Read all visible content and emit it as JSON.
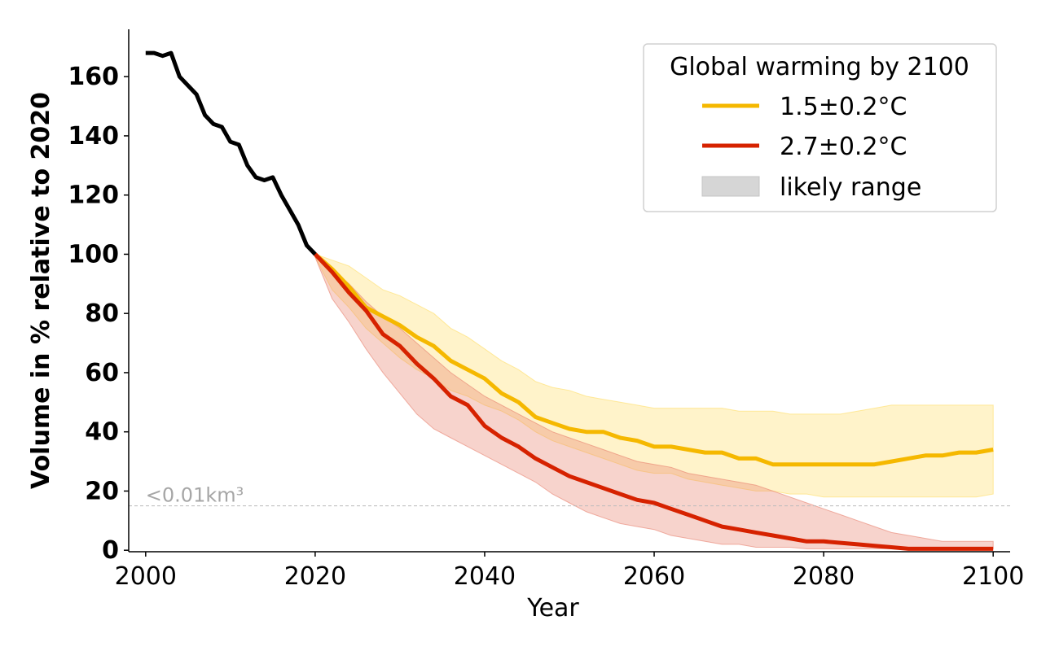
{
  "chart_data": {
    "type": "line",
    "title": "",
    "xlabel": "Year",
    "ylabel": "Volume in % relative to 2020",
    "xlim": [
      1998,
      2102
    ],
    "ylim": [
      -0.5,
      176
    ],
    "xticks": [
      2000,
      2020,
      2040,
      2060,
      2080,
      2100
    ],
    "yticks": [
      0,
      20,
      40,
      60,
      80,
      100,
      120,
      140,
      160
    ],
    "legend_position": "top-right",
    "legend": {
      "title": "Global warming by 2100",
      "entries": [
        "1.5±0.2°C",
        "2.7±0.2°C",
        "likely range"
      ]
    },
    "threshold": {
      "y": 15,
      "label": "<0.01km³"
    },
    "colors": {
      "historical": "#000000",
      "s15": "#f5b800",
      "s27": "#d62200",
      "s15_band": "#ffdd66",
      "s27_band": "#e8806e",
      "range_swatch": "#d6d6d6",
      "threshold": "#bbbbbb",
      "threshold_text": "#a6a6a6"
    },
    "historical": {
      "name": "observed",
      "x": [
        2000,
        2001,
        2002,
        2003,
        2004,
        2005,
        2006,
        2007,
        2008,
        2009,
        2010,
        2011,
        2012,
        2013,
        2014,
        2015,
        2016,
        2017,
        2018,
        2019,
        2020
      ],
      "y": [
        168,
        168,
        167,
        168,
        160,
        157,
        154,
        147,
        144,
        143,
        138,
        137,
        130,
        126,
        125,
        126,
        120,
        115,
        110,
        103,
        100
      ]
    },
    "series": [
      {
        "name": "1.5±0.2°C",
        "x": [
          2020,
          2022,
          2024,
          2026,
          2028,
          2030,
          2032,
          2034,
          2036,
          2038,
          2040,
          2042,
          2044,
          2046,
          2048,
          2050,
          2052,
          2054,
          2056,
          2058,
          2060,
          2062,
          2064,
          2066,
          2068,
          2070,
          2072,
          2074,
          2076,
          2078,
          2080,
          2082,
          2084,
          2086,
          2088,
          2090,
          2092,
          2094,
          2096,
          2098,
          2100
        ],
        "y": [
          100,
          95,
          89,
          82,
          79,
          76,
          72,
          69,
          64,
          61,
          58,
          53,
          50,
          45,
          43,
          41,
          40,
          40,
          38,
          37,
          35,
          35,
          34,
          33,
          33,
          31,
          31,
          29,
          29,
          29,
          29,
          29,
          29,
          29,
          30,
          31,
          32,
          32,
          33,
          33,
          34
        ],
        "low": [
          99,
          88,
          82,
          75,
          70,
          65,
          61,
          58,
          54,
          52,
          49,
          47,
          44,
          40,
          37,
          35,
          33,
          31,
          29,
          27,
          26,
          26,
          24,
          23,
          22,
          21,
          20,
          20,
          19,
          19,
          18,
          18,
          18,
          18,
          18,
          18,
          18,
          18,
          18,
          18,
          19
        ],
        "high": [
          100,
          98,
          96,
          92,
          88,
          86,
          83,
          80,
          75,
          72,
          68,
          64,
          61,
          57,
          55,
          54,
          52,
          51,
          50,
          49,
          48,
          48,
          48,
          48,
          48,
          47,
          47,
          47,
          46,
          46,
          46,
          46,
          47,
          48,
          49,
          49,
          49,
          49,
          49,
          49,
          49
        ]
      },
      {
        "name": "2.7±0.2°C",
        "x": [
          2020,
          2022,
          2024,
          2026,
          2028,
          2030,
          2032,
          2034,
          2036,
          2038,
          2040,
          2042,
          2044,
          2046,
          2048,
          2050,
          2052,
          2054,
          2056,
          2058,
          2060,
          2062,
          2064,
          2066,
          2068,
          2070,
          2072,
          2074,
          2076,
          2078,
          2080,
          2082,
          2084,
          2086,
          2088,
          2090,
          2092,
          2094,
          2096,
          2098,
          2100
        ],
        "y": [
          100,
          94,
          87,
          81,
          73,
          69,
          63,
          58,
          52,
          49,
          42,
          38,
          35,
          31,
          28,
          25,
          23,
          21,
          19,
          17,
          16,
          14,
          12,
          10,
          8,
          7,
          6,
          5,
          4,
          3,
          3,
          2.5,
          2,
          1.5,
          1,
          0.5,
          0.5,
          0.5,
          0.5,
          0.5,
          0.5
        ],
        "low": [
          99,
          85,
          77,
          68,
          60,
          53,
          46,
          41,
          38,
          35,
          32,
          29,
          26,
          23,
          19,
          16,
          13,
          11,
          9,
          8,
          7,
          5,
          4,
          3,
          2,
          2,
          1,
          1,
          1,
          0.5,
          0.5,
          0.5,
          0.5,
          0.5,
          0.5,
          0.5,
          0.5,
          0.5,
          0.5,
          0.5,
          0.5
        ],
        "high": [
          100,
          95,
          90,
          84,
          79,
          75,
          70,
          65,
          60,
          56,
          52,
          49,
          46,
          43,
          40,
          38,
          36,
          34,
          32,
          30,
          29,
          28,
          26,
          25,
          24,
          23,
          22,
          20,
          18,
          16,
          14,
          12,
          10,
          8,
          6,
          5,
          4,
          3,
          3,
          3,
          3
        ]
      }
    ]
  }
}
